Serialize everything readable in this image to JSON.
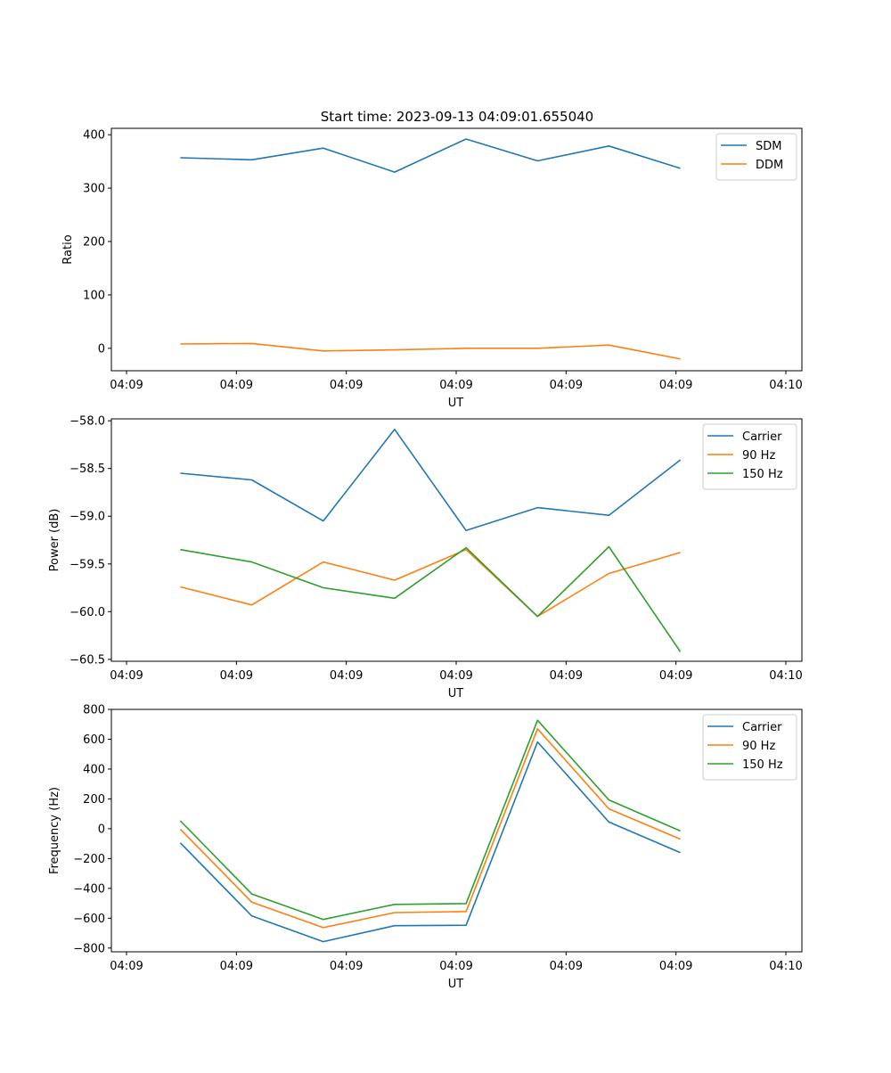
{
  "figure_title": "Start time: 2023-09-13 04:09:01.655040",
  "chart_data": [
    {
      "type": "line",
      "title": "Start time: 2023-09-13 04:09:01.655040",
      "xlabel": "UT",
      "ylabel": "Ratio",
      "xlim": [
        0,
        6
      ],
      "ylim": [
        -42,
        412
      ],
      "x_ticks": [
        0,
        1,
        2,
        3,
        4,
        5,
        6
      ],
      "x_tick_labels": [
        "04:09",
        "04:09",
        "04:09",
        "04:09",
        "04:09",
        "04:09",
        "04:10"
      ],
      "y_ticks": [
        0,
        100,
        200,
        300,
        400
      ],
      "y_tick_labels": [
        "0",
        "100",
        "200",
        "300",
        "400"
      ],
      "legend_position": "top-right",
      "x": [
        0.49,
        1.14,
        1.79,
        2.44,
        3.09,
        3.74,
        4.39,
        5.04
      ],
      "series": [
        {
          "name": "SDM",
          "color": "#1f77b4",
          "values": [
            357,
            353,
            375,
            330,
            392,
            351,
            379,
            337
          ]
        },
        {
          "name": "DDM",
          "color": "#ff7f0e",
          "values": [
            8,
            9,
            -5,
            -3,
            0,
            0,
            6,
            -20
          ]
        }
      ]
    },
    {
      "type": "line",
      "title": "",
      "xlabel": "UT",
      "ylabel": "Power (dB)",
      "xlim": [
        0,
        6
      ],
      "ylim": [
        -60.52,
        -57.98
      ],
      "x_ticks": [
        0,
        1,
        2,
        3,
        4,
        5,
        6
      ],
      "x_tick_labels": [
        "04:09",
        "04:09",
        "04:09",
        "04:09",
        "04:09",
        "04:09",
        "04:10"
      ],
      "y_ticks": [
        -58.0,
        -58.5,
        -59.0,
        -59.5,
        -60.0,
        -60.5
      ],
      "y_tick_labels": [
        "−58.0",
        "−58.5",
        "−59.0",
        "−59.5",
        "−60.0",
        "−60.5"
      ],
      "legend_position": "top-right",
      "x": [
        0.49,
        1.14,
        1.79,
        2.44,
        3.09,
        3.74,
        4.39,
        5.04
      ],
      "series": [
        {
          "name": "Carrier",
          "color": "#1f77b4",
          "values": [
            -58.55,
            -58.62,
            -59.05,
            -58.09,
            -59.15,
            -58.91,
            -58.99,
            -58.41
          ]
        },
        {
          "name": "90 Hz",
          "color": "#ff7f0e",
          "values": [
            -59.74,
            -59.93,
            -59.48,
            -59.67,
            -59.35,
            -60.05,
            -59.6,
            -59.38
          ]
        },
        {
          "name": "150 Hz",
          "color": "#2ca02c",
          "values": [
            -59.35,
            -59.48,
            -59.75,
            -59.86,
            -59.33,
            -60.05,
            -59.32,
            -60.42
          ]
        }
      ]
    },
    {
      "type": "line",
      "title": "",
      "xlabel": "UT",
      "ylabel": "Frequency (Hz)",
      "xlim": [
        0,
        6
      ],
      "ylim": [
        -825,
        800
      ],
      "x_ticks": [
        0,
        1,
        2,
        3,
        4,
        5,
        6
      ],
      "x_tick_labels": [
        "04:09",
        "04:09",
        "04:09",
        "04:09",
        "04:09",
        "04:09",
        "04:10"
      ],
      "y_ticks": [
        800,
        600,
        400,
        200,
        0,
        -200,
        -400,
        -600,
        -800
      ],
      "y_tick_labels": [
        "800",
        "600",
        "400",
        "200",
        "0",
        "−200",
        "−400",
        "−600",
        "−800"
      ],
      "legend_position": "top-right",
      "x": [
        0.49,
        1.14,
        1.79,
        2.44,
        3.09,
        3.74,
        4.39,
        5.04
      ],
      "series": [
        {
          "name": "Carrier",
          "color": "#1f77b4",
          "values": [
            -95,
            -585,
            -757,
            -650,
            -647,
            582,
            45,
            -160
          ]
        },
        {
          "name": "90 Hz",
          "color": "#ff7f0e",
          "values": [
            -3,
            -492,
            -663,
            -562,
            -555,
            670,
            133,
            -70
          ]
        },
        {
          "name": "150 Hz",
          "color": "#2ca02c",
          "values": [
            53,
            -437,
            -608,
            -507,
            -502,
            727,
            193,
            -15
          ]
        }
      ]
    }
  ]
}
